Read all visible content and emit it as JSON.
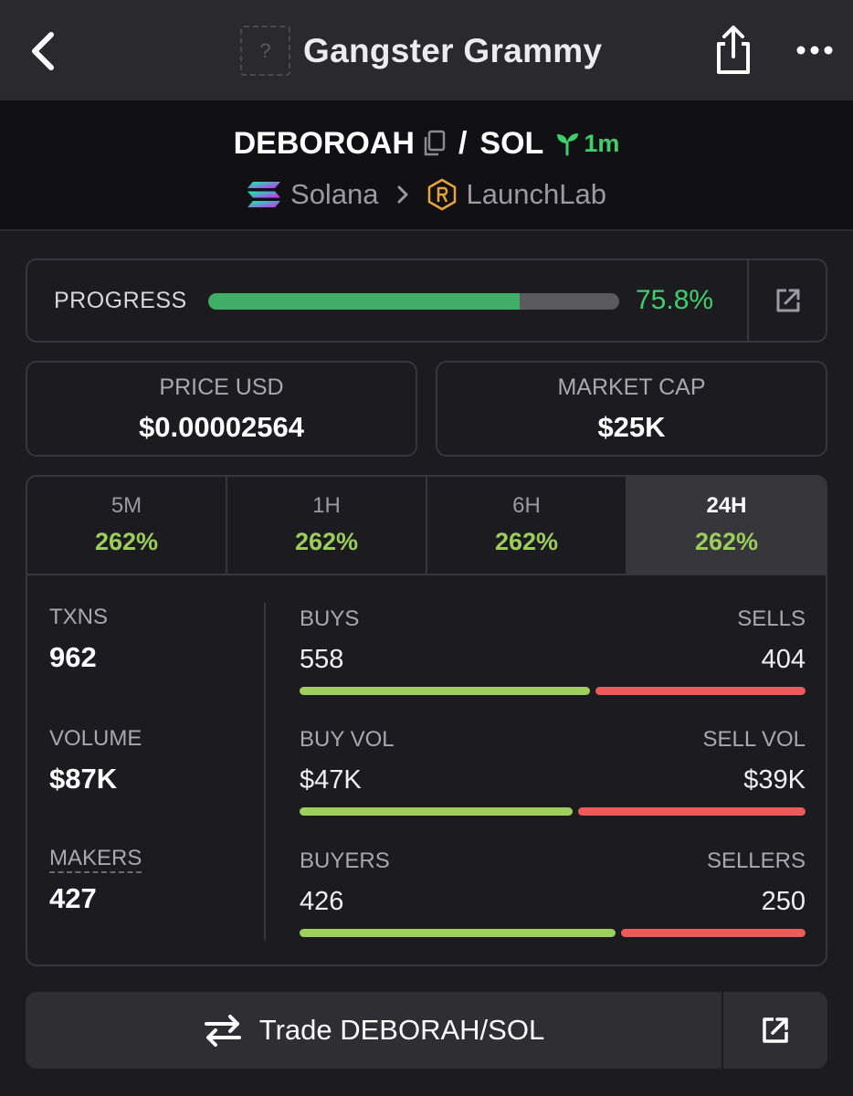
{
  "header": {
    "logo_placeholder": "?",
    "title": "Gangster Grammy",
    "icons": [
      "chevron-left-icon",
      "share-icon",
      "more-icon"
    ]
  },
  "pair": {
    "base": "DEBOROAH",
    "separator": "/",
    "quote": "SOL",
    "age": "1m",
    "chain": "Solana",
    "dex": "LaunchLab"
  },
  "progress": {
    "label": "PROGRESS",
    "value_text": "75.8%",
    "fraction": 0.758
  },
  "price": {
    "label": "PRICE USD",
    "value": "$0.00002564"
  },
  "market_cap": {
    "label": "MARKET CAP",
    "value": "$25K"
  },
  "timeframes": [
    {
      "label": "5M",
      "change": "262%"
    },
    {
      "label": "1H",
      "change": "262%"
    },
    {
      "label": "6H",
      "change": "262%"
    },
    {
      "label": "24H",
      "change": "262%",
      "active": true
    }
  ],
  "stats": {
    "txns": {
      "label": "TXNS",
      "value": "962"
    },
    "volume": {
      "label": "VOLUME",
      "value": "$87K"
    },
    "makers": {
      "label": "MAKERS",
      "value": "427"
    },
    "buys_sells": {
      "left_label": "BUYS",
      "left_value": "558",
      "right_label": "SELLS",
      "right_value": "404",
      "left_fraction": 0.58
    },
    "vol": {
      "left_label": "BUY VOL",
      "left_value": "$47K",
      "right_label": "SELL VOL",
      "right_value": "$39K",
      "left_fraction": 0.546
    },
    "buyers_sellers": {
      "left_label": "BUYERS",
      "left_value": "426",
      "right_label": "SELLERS",
      "right_value": "250",
      "left_fraction": 0.63
    }
  },
  "trade": {
    "label": "Trade DEBORAH/SOL"
  },
  "colors": {
    "accent_green": "#3fcf6a",
    "change_green": "#9acd5a",
    "buy_bar": "#9ecf5d",
    "sell_bar": "#ee5a5a"
  }
}
